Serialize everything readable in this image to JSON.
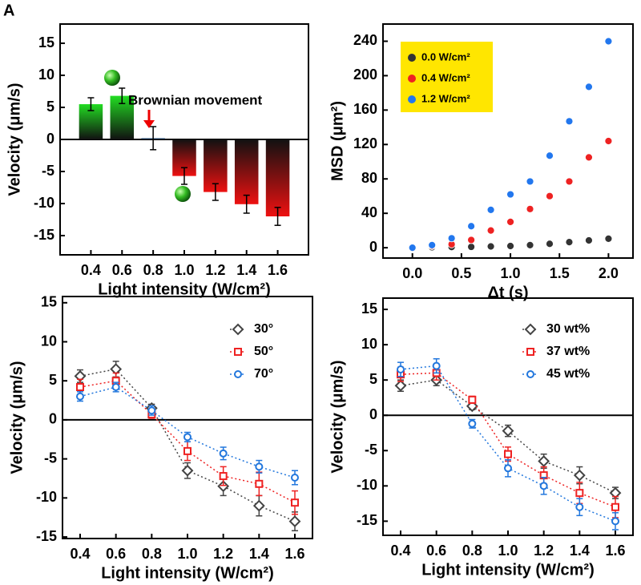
{
  "chart_data": [
    {
      "type": "bar",
      "panel_label": "A",
      "xlabel": "Light intensity (W/cm²)",
      "ylabel": "Velocity (μm/s)",
      "annotation": "Brownian movement",
      "categories": [
        "0.4",
        "0.6",
        "0.8",
        "1.0",
        "1.2",
        "1.4",
        "1.6"
      ],
      "values": [
        5.5,
        6.8,
        0.2,
        -5.7,
        -8.2,
        -10.1,
        -12.0
      ],
      "errors": [
        1.0,
        1.2,
        1.8,
        1.3,
        1.3,
        1.4,
        1.4
      ],
      "colors": [
        "#22dd22",
        "#22dd22",
        "#3a6fa6",
        "#ee1111",
        "#ee1111",
        "#ee1111",
        "#ee1111"
      ],
      "ylim": [
        -18,
        18
      ],
      "yticks": [
        -15,
        -10,
        -5,
        0,
        5,
        10,
        15
      ],
      "zero_line": true
    },
    {
      "type": "scatter",
      "xlabel": "Δt (s)",
      "ylabel": "MSD (μm²)",
      "x": [
        0,
        0.2,
        0.4,
        0.6,
        0.8,
        1.0,
        1.2,
        1.4,
        1.6,
        1.8,
        2.0
      ],
      "series": [
        {
          "name": "0.0 W/cm²",
          "color": "#333333",
          "values": [
            0,
            0.5,
            0.8,
            1,
            1.5,
            2,
            3,
            4.5,
            6.5,
            8.5,
            10.5
          ]
        },
        {
          "name": "0.4 W/cm²",
          "color": "#ee2222",
          "values": [
            0,
            2,
            4,
            9,
            20,
            30,
            45,
            60,
            77,
            105,
            124
          ]
        },
        {
          "name": "1.2 W/cm²",
          "color": "#2277ee",
          "values": [
            0,
            3,
            11,
            25,
            44,
            62,
            77,
            107,
            147,
            187,
            240
          ]
        }
      ],
      "xlim": [
        -0.3,
        2.25
      ],
      "xticks": [
        {
          "value": 0,
          "label": "0.0"
        },
        0.5,
        {
          "value": 1,
          "label": "1.0"
        },
        1.5,
        {
          "value": 2,
          "label": "2.0"
        }
      ],
      "ylim": [
        -12,
        260
      ],
      "yticks": [
        0,
        40,
        80,
        120,
        160,
        200,
        240
      ],
      "legend_color": "#ffe600"
    },
    {
      "type": "line",
      "xlabel": "Light intensity (W/cm²)",
      "ylabel": "Velocity (μm/s)",
      "categories": [
        "0.4",
        "0.6",
        "0.8",
        "1.0",
        "1.2",
        "1.4",
        "1.6"
      ],
      "series": [
        {
          "name": "30°",
          "color": "#444444",
          "marker": "diamond",
          "values": [
            5.6,
            6.5,
            1.5,
            -6.5,
            -8.5,
            -11,
            -13
          ],
          "errors": [
            0.8,
            1,
            0.5,
            1,
            1.2,
            1.3,
            1.2
          ]
        },
        {
          "name": "50°",
          "color": "#ee2222",
          "marker": "square",
          "values": [
            4.2,
            5,
            0.7,
            -4,
            -7.2,
            -8.2,
            -10.6
          ],
          "errors": [
            1,
            1,
            0.5,
            1.2,
            1.2,
            1.5,
            1.5
          ]
        },
        {
          "name": "70°",
          "color": "#2277dd",
          "marker": "circle",
          "values": [
            3,
            4.2,
            1.2,
            -2.2,
            -4.3,
            -6,
            -7.4
          ],
          "errors": [
            0.6,
            0.6,
            0.6,
            0.6,
            0.8,
            0.8,
            0.9
          ]
        }
      ],
      "ylim": [
        -15.2,
        15.8
      ],
      "yticks": [
        -15,
        -10,
        -5,
        0,
        5,
        10,
        15
      ],
      "zero_line": true
    },
    {
      "type": "line",
      "xlabel": "Light intensity (W/cm²)",
      "ylabel": "Velocity (μm/s)",
      "categories": [
        "0.4",
        "0.6",
        "0.8",
        "1.0",
        "1.2",
        "1.4",
        "1.6"
      ],
      "series": [
        {
          "name": "30 wt%",
          "color": "#444444",
          "marker": "diamond",
          "values": [
            4.2,
            5,
            1.3,
            -2.2,
            -6.5,
            -8.5,
            -11
          ],
          "errors": [
            0.8,
            0.8,
            0.5,
            0.8,
            1,
            1.2,
            0.8
          ]
        },
        {
          "name": "37 wt%",
          "color": "#ee2222",
          "marker": "square",
          "values": [
            5.8,
            6,
            2.2,
            -5.5,
            -8.5,
            -11,
            -13
          ],
          "errors": [
            1,
            1,
            0.5,
            1,
            1.2,
            1.5,
            1.5
          ]
        },
        {
          "name": "45 wt%",
          "color": "#2277dd",
          "marker": "circle",
          "values": [
            6.5,
            7,
            -1.2,
            -7.5,
            -10,
            -13,
            -15
          ],
          "errors": [
            1,
            1,
            0.6,
            1.2,
            1.2,
            1.2,
            1.2
          ]
        }
      ],
      "ylim": [
        -17,
        16.6
      ],
      "yticks": [
        -15,
        -10,
        -5,
        0,
        5,
        10,
        15
      ],
      "zero_line": true
    }
  ]
}
